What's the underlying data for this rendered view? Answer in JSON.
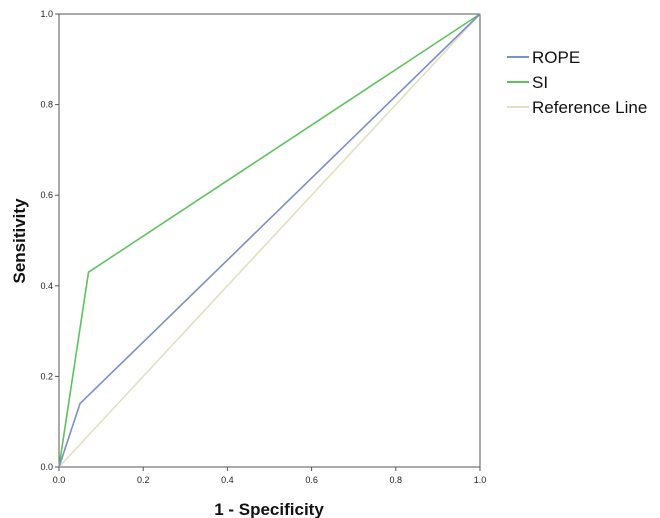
{
  "chart_data": {
    "type": "line",
    "title": "",
    "xlabel": "1 - Specificity",
    "ylabel": "Sensitivity",
    "xlim": [
      0,
      1
    ],
    "ylim": [
      0,
      1
    ],
    "x_ticks": [
      "0.0",
      "0.2",
      "0.4",
      "0.6",
      "0.8",
      "1.0"
    ],
    "y_ticks": [
      "0.0",
      "0.2",
      "0.4",
      "0.6",
      "0.8",
      "1.0"
    ],
    "grid": false,
    "legend_position": "right",
    "series": [
      {
        "name": "ROPE",
        "color": "#7b8fc9",
        "points": [
          [
            0,
            0
          ],
          [
            0.05,
            0.14
          ],
          [
            1,
            1
          ]
        ]
      },
      {
        "name": "SI",
        "color": "#5ec35e",
        "points": [
          [
            0,
            0
          ],
          [
            0.07,
            0.43
          ],
          [
            1,
            1
          ]
        ]
      },
      {
        "name": "Reference Line",
        "color": "#e3e0c2",
        "points": [
          [
            0,
            0
          ],
          [
            1,
            1
          ]
        ]
      }
    ]
  }
}
